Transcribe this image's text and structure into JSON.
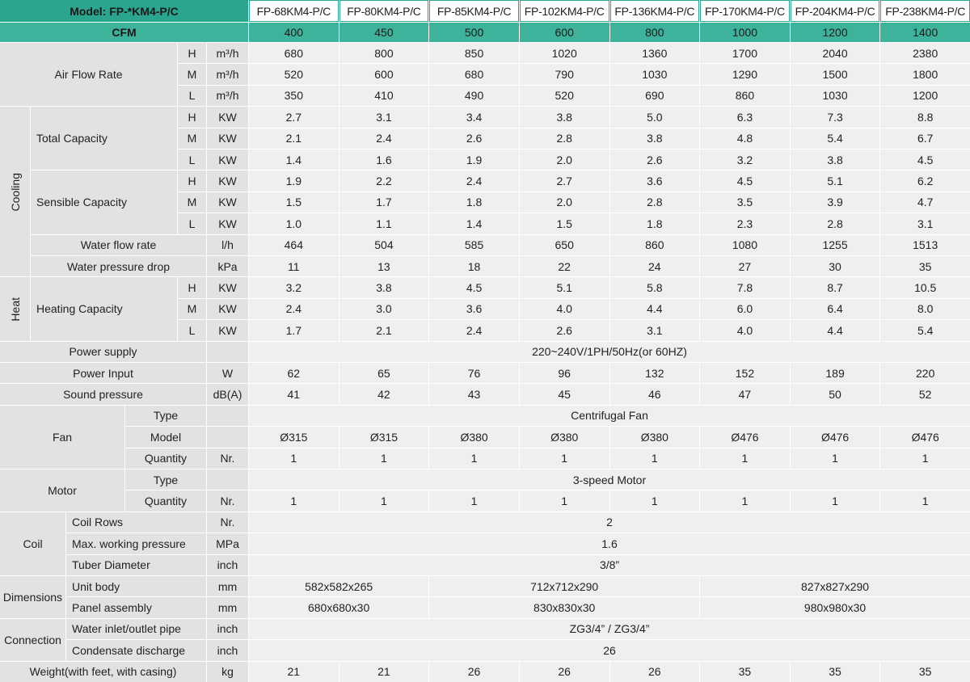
{
  "header": {
    "model_label": "Model: FP-*KM4-P/C",
    "models": [
      "FP-68KM4-P/C",
      "FP-80KM4-P/C",
      "FP-85KM4-P/C",
      "FP-102KM4-P/C",
      "FP-136KM4-P/C",
      "FP-170KM4-P/C",
      "FP-204KM4-P/C",
      "FP-238KM4-P/C"
    ],
    "cfm_label": "CFM",
    "cfm": [
      400,
      450,
      500,
      600,
      800,
      1000,
      1200,
      1400
    ]
  },
  "air_flow_rate": {
    "label": "Air Flow Rate",
    "rows": [
      {
        "level": "H",
        "unit": "m³/h",
        "values": [
          680,
          800,
          850,
          1020,
          1360,
          1700,
          2040,
          2380
        ]
      },
      {
        "level": "M",
        "unit": "m³/h",
        "values": [
          520,
          600,
          680,
          790,
          1030,
          1290,
          1500,
          1800
        ]
      },
      {
        "level": "L",
        "unit": "m³/h",
        "values": [
          350,
          410,
          490,
          520,
          690,
          860,
          1030,
          1200
        ]
      }
    ]
  },
  "cooling": {
    "label": "Cooling",
    "total_capacity": {
      "label": "Total Capacity",
      "rows": [
        {
          "level": "H",
          "unit": "KW",
          "values": [
            "2.7",
            "3.1",
            "3.4",
            "3.8",
            "5.0",
            "6.3",
            "7.3",
            "8.8"
          ]
        },
        {
          "level": "M",
          "unit": "KW",
          "values": [
            "2.1",
            "2.4",
            "2.6",
            "2.8",
            "3.8",
            "4.8",
            "5.4",
            "6.7"
          ]
        },
        {
          "level": "L",
          "unit": "KW",
          "values": [
            "1.4",
            "1.6",
            "1.9",
            "2.0",
            "2.6",
            "3.2",
            "3.8",
            "4.5"
          ]
        }
      ]
    },
    "sensible_capacity": {
      "label": "Sensible Capacity",
      "rows": [
        {
          "level": "H",
          "unit": "KW",
          "values": [
            "1.9",
            "2.2",
            "2.4",
            "2.7",
            "3.6",
            "4.5",
            "5.1",
            "6.2"
          ]
        },
        {
          "level": "M",
          "unit": "KW",
          "values": [
            "1.5",
            "1.7",
            "1.8",
            "2.0",
            "2.8",
            "3.5",
            "3.9",
            "4.7"
          ]
        },
        {
          "level": "L",
          "unit": "KW",
          "values": [
            "1.0",
            "1.1",
            "1.4",
            "1.5",
            "1.8",
            "2.3",
            "2.8",
            "3.1"
          ]
        }
      ]
    },
    "water_flow_rate": {
      "label": "Water flow rate",
      "unit": "l/h",
      "values": [
        464,
        504,
        585,
        650,
        860,
        1080,
        1255,
        1513
      ]
    },
    "water_pressure_drop": {
      "label": "Water pressure drop",
      "unit": "kPa",
      "values": [
        11,
        13,
        18,
        22,
        24,
        27,
        30,
        35
      ]
    }
  },
  "heat": {
    "label": "Heat",
    "heating_capacity": {
      "label": "Heating Capacity",
      "rows": [
        {
          "level": "H",
          "unit": "KW",
          "values": [
            "3.2",
            "3.8",
            "4.5",
            "5.1",
            "5.8",
            "7.8",
            "8.7",
            "10.5"
          ]
        },
        {
          "level": "M",
          "unit": "KW",
          "values": [
            "2.4",
            "3.0",
            "3.6",
            "4.0",
            "4.4",
            "6.0",
            "6.4",
            "8.0"
          ]
        },
        {
          "level": "L",
          "unit": "KW",
          "values": [
            "1.7",
            "2.1",
            "2.4",
            "2.6",
            "3.1",
            "4.0",
            "4.4",
            "5.4"
          ]
        }
      ]
    }
  },
  "power_supply": {
    "label": "Power supply",
    "value": "220~240V/1PH/50Hz(or 60HZ)"
  },
  "power_input": {
    "label": "Power Input",
    "unit": "W",
    "values": [
      62,
      65,
      76,
      96,
      132,
      152,
      189,
      220
    ]
  },
  "sound_pressure": {
    "label": "Sound pressure",
    "unit": "dB(A)",
    "values": [
      41,
      42,
      43,
      45,
      46,
      47,
      50,
      52
    ]
  },
  "fan": {
    "label": "Fan",
    "type": {
      "label": "Type",
      "value": "Centrifugal Fan"
    },
    "model": {
      "label": "Model",
      "values": [
        "Ø315",
        "Ø315",
        "Ø380",
        "Ø380",
        "Ø380",
        "Ø476",
        "Ø476",
        "Ø476"
      ]
    },
    "quantity": {
      "label": "Quantity",
      "unit": "Nr.",
      "values": [
        1,
        1,
        1,
        1,
        1,
        1,
        1,
        1
      ]
    }
  },
  "motor": {
    "label": "Motor",
    "type": {
      "label": "Type",
      "value": "3-speed Motor"
    },
    "quantity": {
      "label": "Quantity",
      "unit": "Nr.",
      "values": [
        1,
        1,
        1,
        1,
        1,
        1,
        1,
        1
      ]
    }
  },
  "coil": {
    "label": "Coil",
    "items": [
      {
        "label": "Coil Rows",
        "unit": "Nr.",
        "value": 2
      },
      {
        "label": "Max. working pressure",
        "unit": "MPa",
        "value": 1.6
      },
      {
        "label": "Tuber Diameter",
        "unit": "inch",
        "value": "3/8”"
      }
    ]
  },
  "dimensions": {
    "label": "Dimensions",
    "items": [
      {
        "label": "Unit body",
        "unit": "mm",
        "values": [
          "582x582x265",
          "712x712x290",
          "827x827x290"
        ]
      },
      {
        "label": "Panel assembly",
        "unit": "mm",
        "values": [
          "680x680x30",
          "830x830x30",
          "980x980x30"
        ]
      }
    ]
  },
  "connection": {
    "label": "Connection",
    "items": [
      {
        "label": "Water inlet/outlet pipe",
        "unit": "inch",
        "value": "ZG3/4” / ZG3/4”"
      },
      {
        "label": "Condensate discharge",
        "unit": "inch",
        "value": 26
      }
    ]
  },
  "weight": {
    "label": "Weight(with feet, with casing)",
    "unit": "kg",
    "values": [
      21,
      21,
      26,
      26,
      26,
      35,
      35,
      35
    ]
  }
}
